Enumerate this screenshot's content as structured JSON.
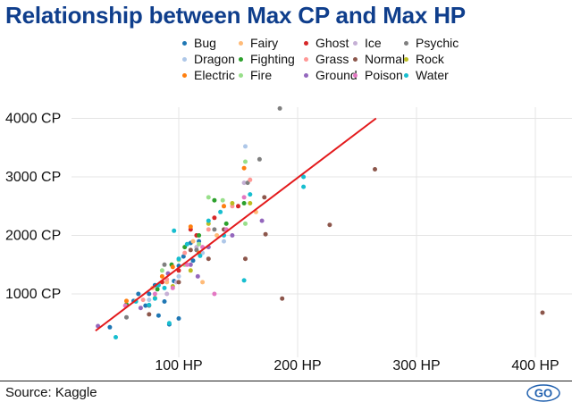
{
  "colors": {
    "Bug": "#1f77b4",
    "Fairy": "#ffbb78",
    "Ghost": "#d62728",
    "Ice": "#c5b0d5",
    "Psychic": "#7f7f7f",
    "Dragon": "#aec7e8",
    "Fighting": "#2ca02c",
    "Grass": "#ff9896",
    "Normal": "#8c564b",
    "Rock": "#bcbd22",
    "Electric": "#ff7f0e",
    "Fire": "#98df8a",
    "Ground": "#9467bd",
    "Poison": "#e377c2",
    "Water": "#17becf",
    "trend": "#e31a1c",
    "title": "#0f3e8c"
  },
  "footer": {
    "source": "Source: Kaggle",
    "logo": "GO"
  },
  "chart_data": {
    "type": "scatter",
    "title": "Relationship between Max CP and Max HP",
    "xlabel": "",
    "ylabel": "",
    "x_ticks": [
      100,
      200,
      300,
      400
    ],
    "x_tick_labels": [
      "100 HP",
      "200 HP",
      "300 HP",
      "400 HP"
    ],
    "y_ticks": [
      1000,
      2000,
      3000,
      4000
    ],
    "y_tick_labels": [
      "1000 CP",
      "2000 CP",
      "3000 CP",
      "4000 CP"
    ],
    "xlim": [
      0,
      425
    ],
    "ylim": [
      0,
      4300
    ],
    "grid": true,
    "legend_position": "top-right",
    "legend": [
      "Bug",
      "Fairy",
      "Ghost",
      "Ice",
      "Psychic",
      "Dragon",
      "Fighting",
      "Grass",
      "Normal",
      "Rock",
      "Electric",
      "Fire",
      "Ground",
      "Poison",
      "Water"
    ],
    "trendline": {
      "x": [
        30,
        266
      ],
      "y": [
        370,
        4000
      ]
    },
    "series": [
      {
        "name": "Bug",
        "points": [
          [
            42,
            430
          ],
          [
            62,
            880
          ],
          [
            72,
            800
          ],
          [
            75,
            1000
          ],
          [
            80,
            1150
          ],
          [
            88,
            870
          ],
          [
            96,
            1220
          ],
          [
            100,
            1480
          ],
          [
            104,
            1640
          ],
          [
            110,
            1870
          ],
          [
            117,
            1900
          ],
          [
            83,
            630
          ],
          [
            66,
            1000
          ],
          [
            92,
            480
          ],
          [
            100,
            580
          ],
          [
            112,
            1570
          ]
        ]
      },
      {
        "name": "Fairy",
        "points": [
          [
            64,
            880
          ],
          [
            78,
            1100
          ],
          [
            90,
            1200
          ],
          [
            112,
            1900
          ],
          [
            132,
            2000
          ],
          [
            165,
            2400
          ],
          [
            120,
            1200
          ]
        ]
      },
      {
        "name": "Ghost",
        "points": [
          [
            86,
            1200
          ],
          [
            100,
            1400
          ],
          [
            115,
            2000
          ],
          [
            130,
            2300
          ],
          [
            150,
            2500
          ],
          [
            110,
            2100
          ]
        ]
      },
      {
        "name": "Ice",
        "points": [
          [
            98,
            1200
          ],
          [
            115,
            1800
          ],
          [
            138,
            2500
          ],
          [
            155,
            2900
          ],
          [
            90,
            1000
          ]
        ]
      },
      {
        "name": "Psychic",
        "points": [
          [
            56,
            600
          ],
          [
            75,
            800
          ],
          [
            88,
            1500
          ],
          [
            115,
            1750
          ],
          [
            130,
            2100
          ],
          [
            158,
            2900
          ],
          [
            185,
            4170
          ],
          [
            168,
            3300
          ]
        ]
      },
      {
        "name": "Dragon",
        "points": [
          [
            75,
            900
          ],
          [
            100,
            1300
          ],
          [
            138,
            1900
          ],
          [
            156,
            3520
          ],
          [
            120,
            1700
          ]
        ]
      },
      {
        "name": "Fighting",
        "points": [
          [
            56,
            820
          ],
          [
            82,
            1080
          ],
          [
            94,
            1500
          ],
          [
            117,
            2000
          ],
          [
            130,
            2600
          ],
          [
            155,
            2550
          ],
          [
            140,
            2200
          ],
          [
            105,
            1800
          ]
        ]
      },
      {
        "name": "Grass",
        "points": [
          [
            70,
            900
          ],
          [
            90,
            1250
          ],
          [
            105,
            1700
          ],
          [
            125,
            2100
          ],
          [
            145,
            2500
          ],
          [
            160,
            2950
          ]
        ]
      },
      {
        "name": "Normal",
        "points": [
          [
            75,
            650
          ],
          [
            100,
            1200
          ],
          [
            110,
            1750
          ],
          [
            125,
            1600
          ],
          [
            138,
            2100
          ],
          [
            156,
            1600
          ],
          [
            173,
            2020
          ],
          [
            187,
            920
          ],
          [
            227,
            2180
          ],
          [
            265,
            3130
          ],
          [
            406,
            680
          ],
          [
            172,
            2650
          ]
        ]
      },
      {
        "name": "Rock",
        "points": [
          [
            80,
            930
          ],
          [
            95,
            1130
          ],
          [
            110,
            1400
          ],
          [
            125,
            2200
          ],
          [
            145,
            2550
          ],
          [
            160,
            2550
          ]
        ]
      },
      {
        "name": "Electric",
        "points": [
          [
            56,
            880
          ],
          [
            86,
            1300
          ],
          [
            95,
            1460
          ],
          [
            110,
            2150
          ],
          [
            117,
            1700
          ],
          [
            138,
            2500
          ],
          [
            155,
            3150
          ]
        ]
      },
      {
        "name": "Fire",
        "points": [
          [
            86,
            1400
          ],
          [
            100,
            1580
          ],
          [
            117,
            1850
          ],
          [
            125,
            2650
          ],
          [
            137,
            2600
          ],
          [
            156,
            2200
          ],
          [
            156,
            3260
          ],
          [
            105,
            1500
          ]
        ]
      },
      {
        "name": "Ground",
        "points": [
          [
            32,
            450
          ],
          [
            68,
            760
          ],
          [
            91,
            1350
          ],
          [
            110,
            1500
          ],
          [
            125,
            1800
          ],
          [
            145,
            2000
          ],
          [
            170,
            2250
          ],
          [
            116,
            1300
          ]
        ]
      },
      {
        "name": "Poison",
        "points": [
          [
            55,
            800
          ],
          [
            80,
            1000
          ],
          [
            95,
            1100
          ],
          [
            107,
            1500
          ],
          [
            120,
            1800
          ],
          [
            130,
            1000
          ],
          [
            140,
            2100
          ],
          [
            155,
            2650
          ]
        ]
      },
      {
        "name": "Water",
        "points": [
          [
            47,
            260
          ],
          [
            64,
            870
          ],
          [
            75,
            810
          ],
          [
            80,
            920
          ],
          [
            88,
            1100
          ],
          [
            96,
            2080
          ],
          [
            100,
            1600
          ],
          [
            107,
            1850
          ],
          [
            125,
            2250
          ],
          [
            138,
            2000
          ],
          [
            155,
            1230
          ],
          [
            160,
            2700
          ],
          [
            205,
            2830
          ],
          [
            205,
            3000
          ],
          [
            92,
            500
          ],
          [
            83,
            1150
          ],
          [
            118,
            1650
          ],
          [
            135,
            2400
          ]
        ]
      }
    ]
  }
}
